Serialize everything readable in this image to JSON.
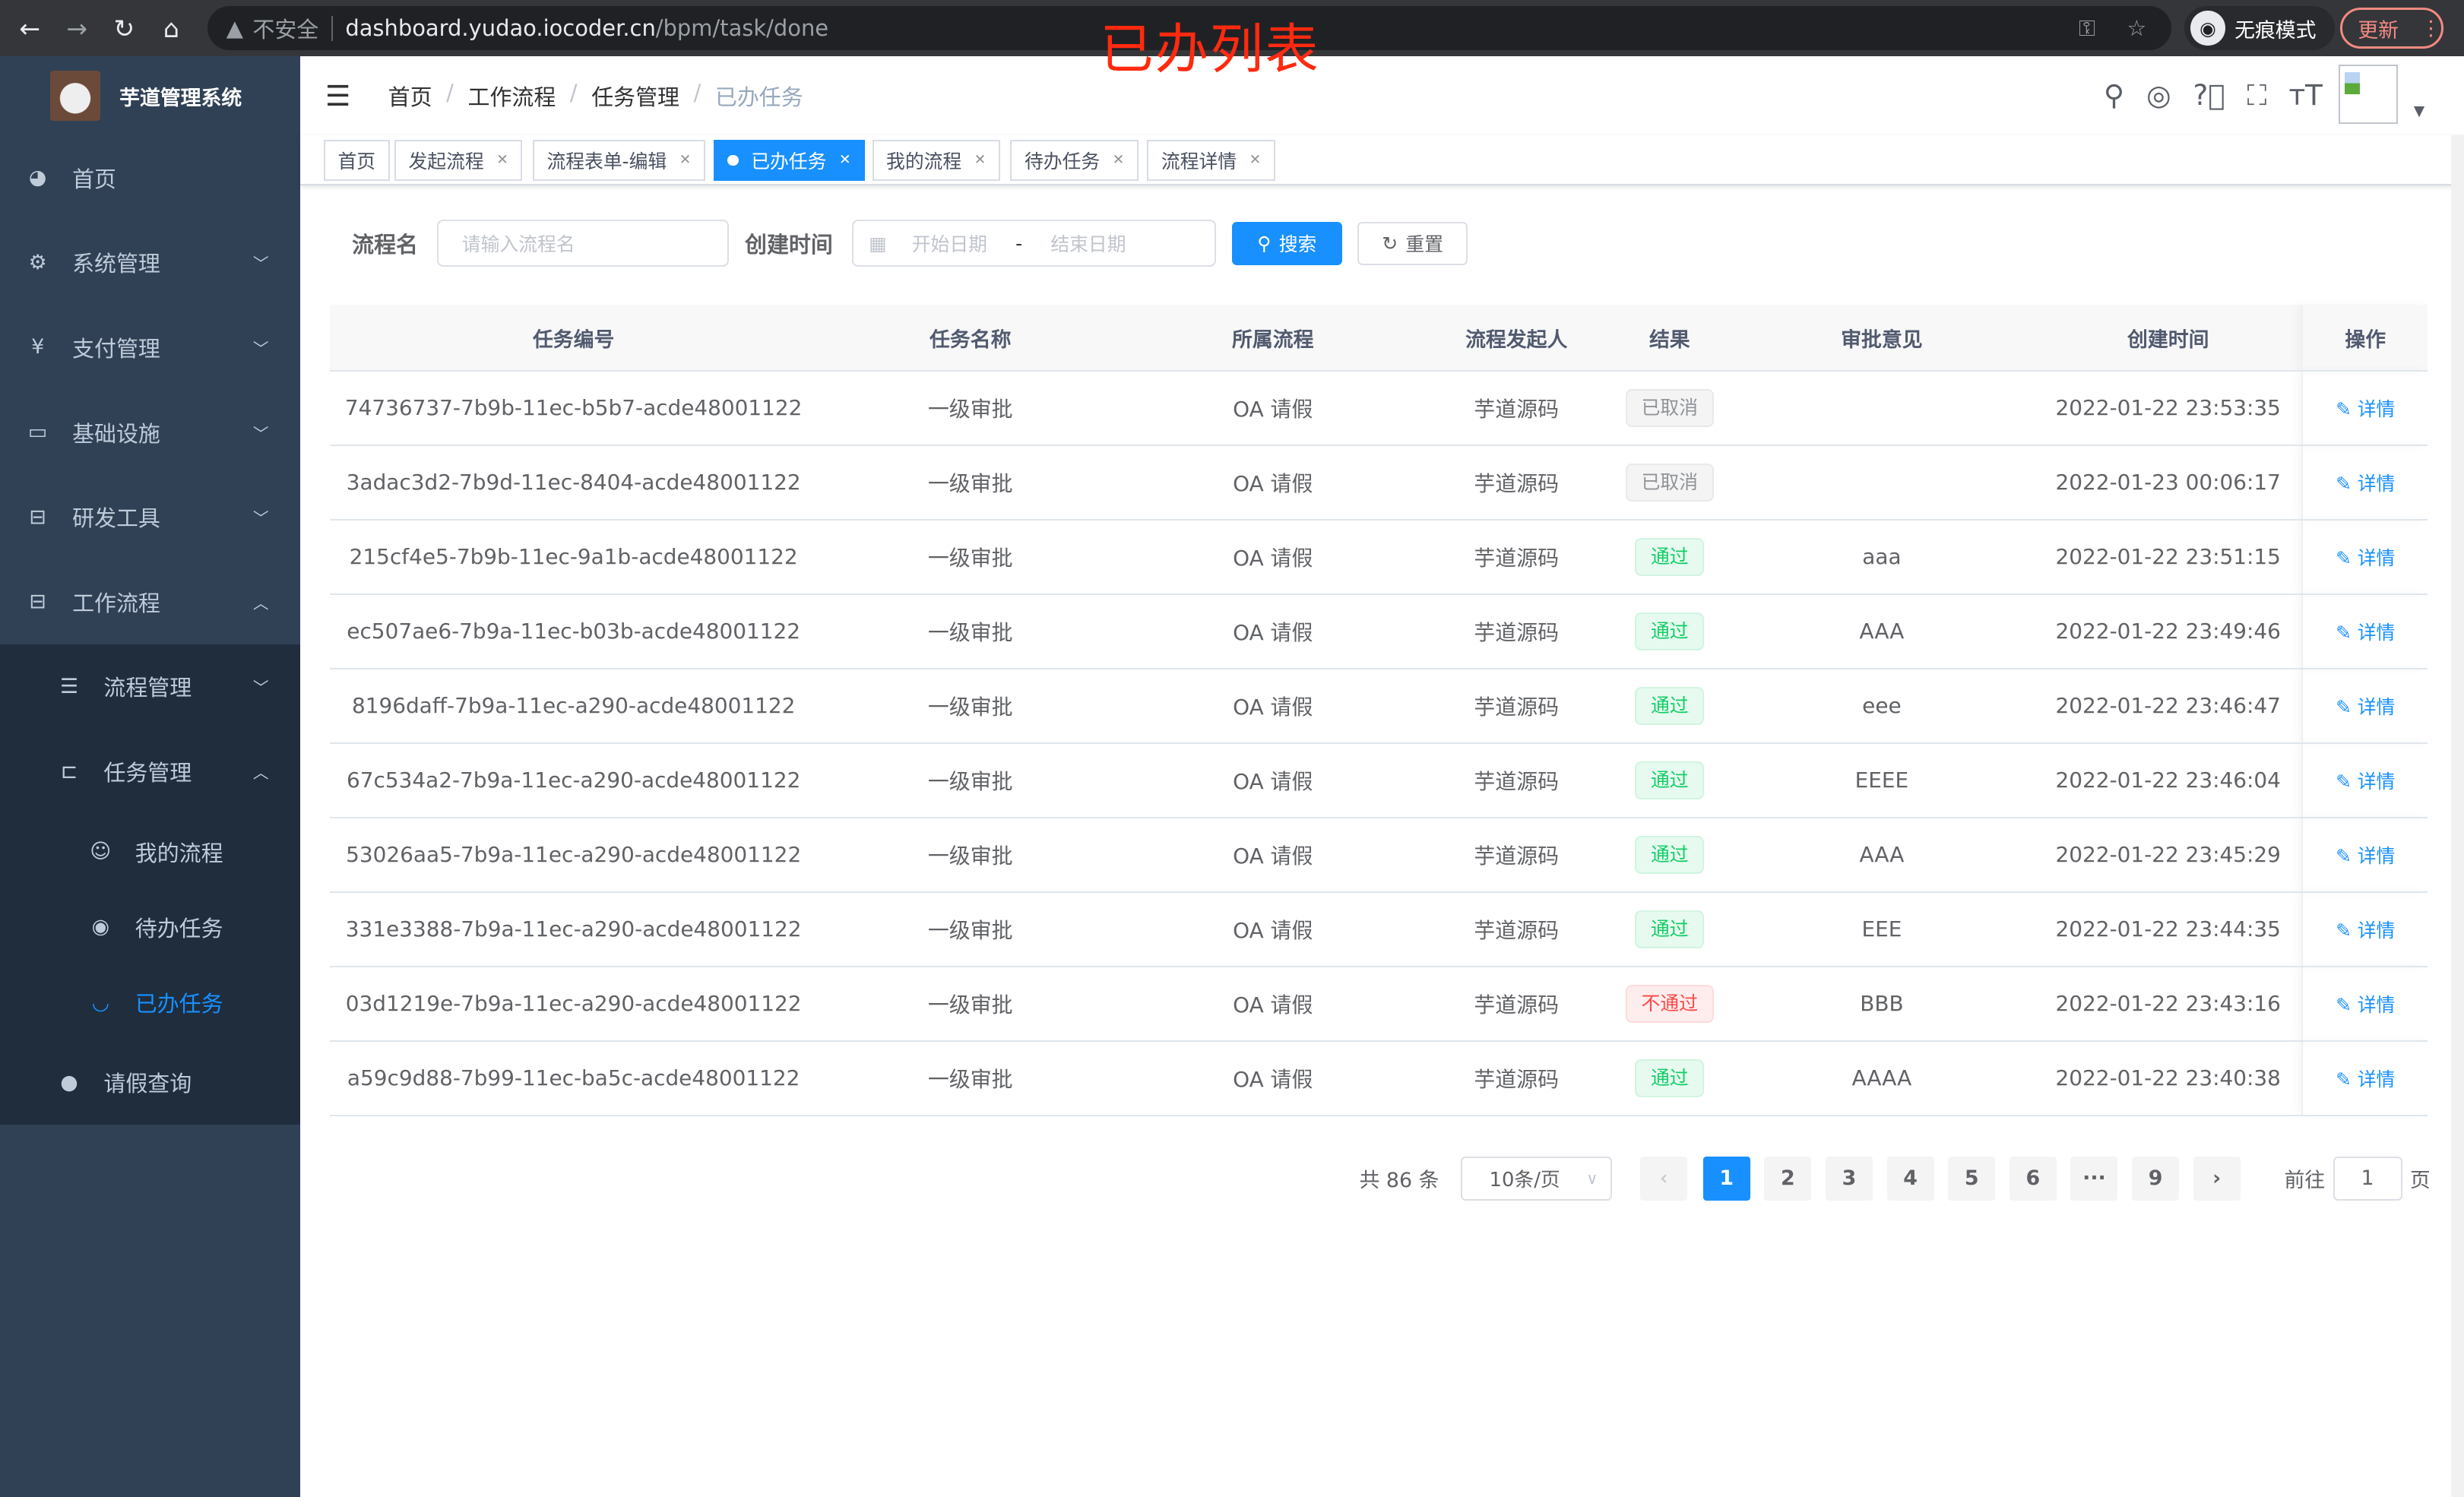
{
  "browser": {
    "security": "不安全",
    "url_host": "dashboard.yudao.iocoder.cn",
    "url_path": "/bpm/task/done",
    "incognito": "无痕模式",
    "update": "更新"
  },
  "overlay_title": "已办列表",
  "sidebar": {
    "title": "芋道管理系统",
    "items": [
      {
        "label": "首页",
        "icon": "dashboard-icon"
      },
      {
        "label": "系统管理",
        "icon": "gear-icon"
      },
      {
        "label": "支付管理",
        "icon": "yen-icon"
      },
      {
        "label": "基础设施",
        "icon": "monitor-icon"
      },
      {
        "label": "研发工具",
        "icon": "toolbox-icon"
      },
      {
        "label": "工作流程",
        "icon": "toolbox-icon"
      }
    ],
    "sub": [
      {
        "label": "流程管理"
      },
      {
        "label": "任务管理"
      }
    ],
    "sub3": [
      {
        "label": "我的流程"
      },
      {
        "label": "待办任务"
      },
      {
        "label": "已办任务"
      }
    ],
    "leave": "请假查询"
  },
  "breadcrumb": [
    "首页",
    "工作流程",
    "任务管理",
    "已办任务"
  ],
  "tags": [
    "首页",
    "发起流程",
    "流程表单-编辑",
    "已办任务",
    "我的流程",
    "待办任务",
    "流程详情"
  ],
  "form": {
    "name_label": "流程名",
    "name_placeholder": "请输入流程名",
    "time_label": "创建时间",
    "start_placeholder": "开始日期",
    "sep": "-",
    "end_placeholder": "结束日期",
    "search": "搜索",
    "reset": "重置"
  },
  "table": {
    "headers": [
      "任务编号",
      "任务名称",
      "所属流程",
      "流程发起人",
      "结果",
      "审批意见",
      "创建时间",
      "操作"
    ],
    "rows": [
      [
        "74736737-7b9b-11ec-b5b7-acde48001122",
        "一级审批",
        "OA 请假",
        "芋道源码",
        "已取消",
        "",
        "2022-01-22 23:53:35",
        "详情"
      ],
      [
        "3adac3d2-7b9d-11ec-8404-acde48001122",
        "一级审批",
        "OA 请假",
        "芋道源码",
        "已取消",
        "",
        "2022-01-23 00:06:17",
        "详情"
      ],
      [
        "215cf4e5-7b9b-11ec-9a1b-acde48001122",
        "一级审批",
        "OA 请假",
        "芋道源码",
        "通过",
        "aaa",
        "2022-01-22 23:51:15",
        "详情"
      ],
      [
        "ec507ae6-7b9a-11ec-b03b-acde48001122",
        "一级审批",
        "OA 请假",
        "芋道源码",
        "通过",
        "AAA",
        "2022-01-22 23:49:46",
        "详情"
      ],
      [
        "8196daff-7b9a-11ec-a290-acde48001122",
        "一级审批",
        "OA 请假",
        "芋道源码",
        "通过",
        "eee",
        "2022-01-22 23:46:47",
        "详情"
      ],
      [
        "67c534a2-7b9a-11ec-a290-acde48001122",
        "一级审批",
        "OA 请假",
        "芋道源码",
        "通过",
        "EEEE",
        "2022-01-22 23:46:04",
        "详情"
      ],
      [
        "53026aa5-7b9a-11ec-a290-acde48001122",
        "一级审批",
        "OA 请假",
        "芋道源码",
        "通过",
        "AAA",
        "2022-01-22 23:45:29",
        "详情"
      ],
      [
        "331e3388-7b9a-11ec-a290-acde48001122",
        "一级审批",
        "OA 请假",
        "芋道源码",
        "通过",
        "EEE",
        "2022-01-22 23:44:35",
        "详情"
      ],
      [
        "03d1219e-7b9a-11ec-a290-acde48001122",
        "一级审批",
        "OA 请假",
        "芋道源码",
        "不通过",
        "BBB",
        "2022-01-22 23:43:16",
        "详情"
      ],
      [
        "a59c9d88-7b99-11ec-ba5c-acde48001122",
        "一级审批",
        "OA 请假",
        "芋道源码",
        "通过",
        "AAAA",
        "2022-01-22 23:40:38",
        "详情"
      ]
    ]
  },
  "pagination": {
    "total": "共 86 条",
    "page_size": "10条/页",
    "pages": [
      "1",
      "2",
      "3",
      "4",
      "5",
      "6",
      "···",
      "9"
    ],
    "current": "1",
    "goto_label": "前往",
    "goto_value": "1",
    "page_unit": "页"
  },
  "colors": {
    "primary": "#1890ff",
    "sidebar": "#304156",
    "success": "#13ce66",
    "danger": "#ff4949",
    "info": "#909399"
  }
}
